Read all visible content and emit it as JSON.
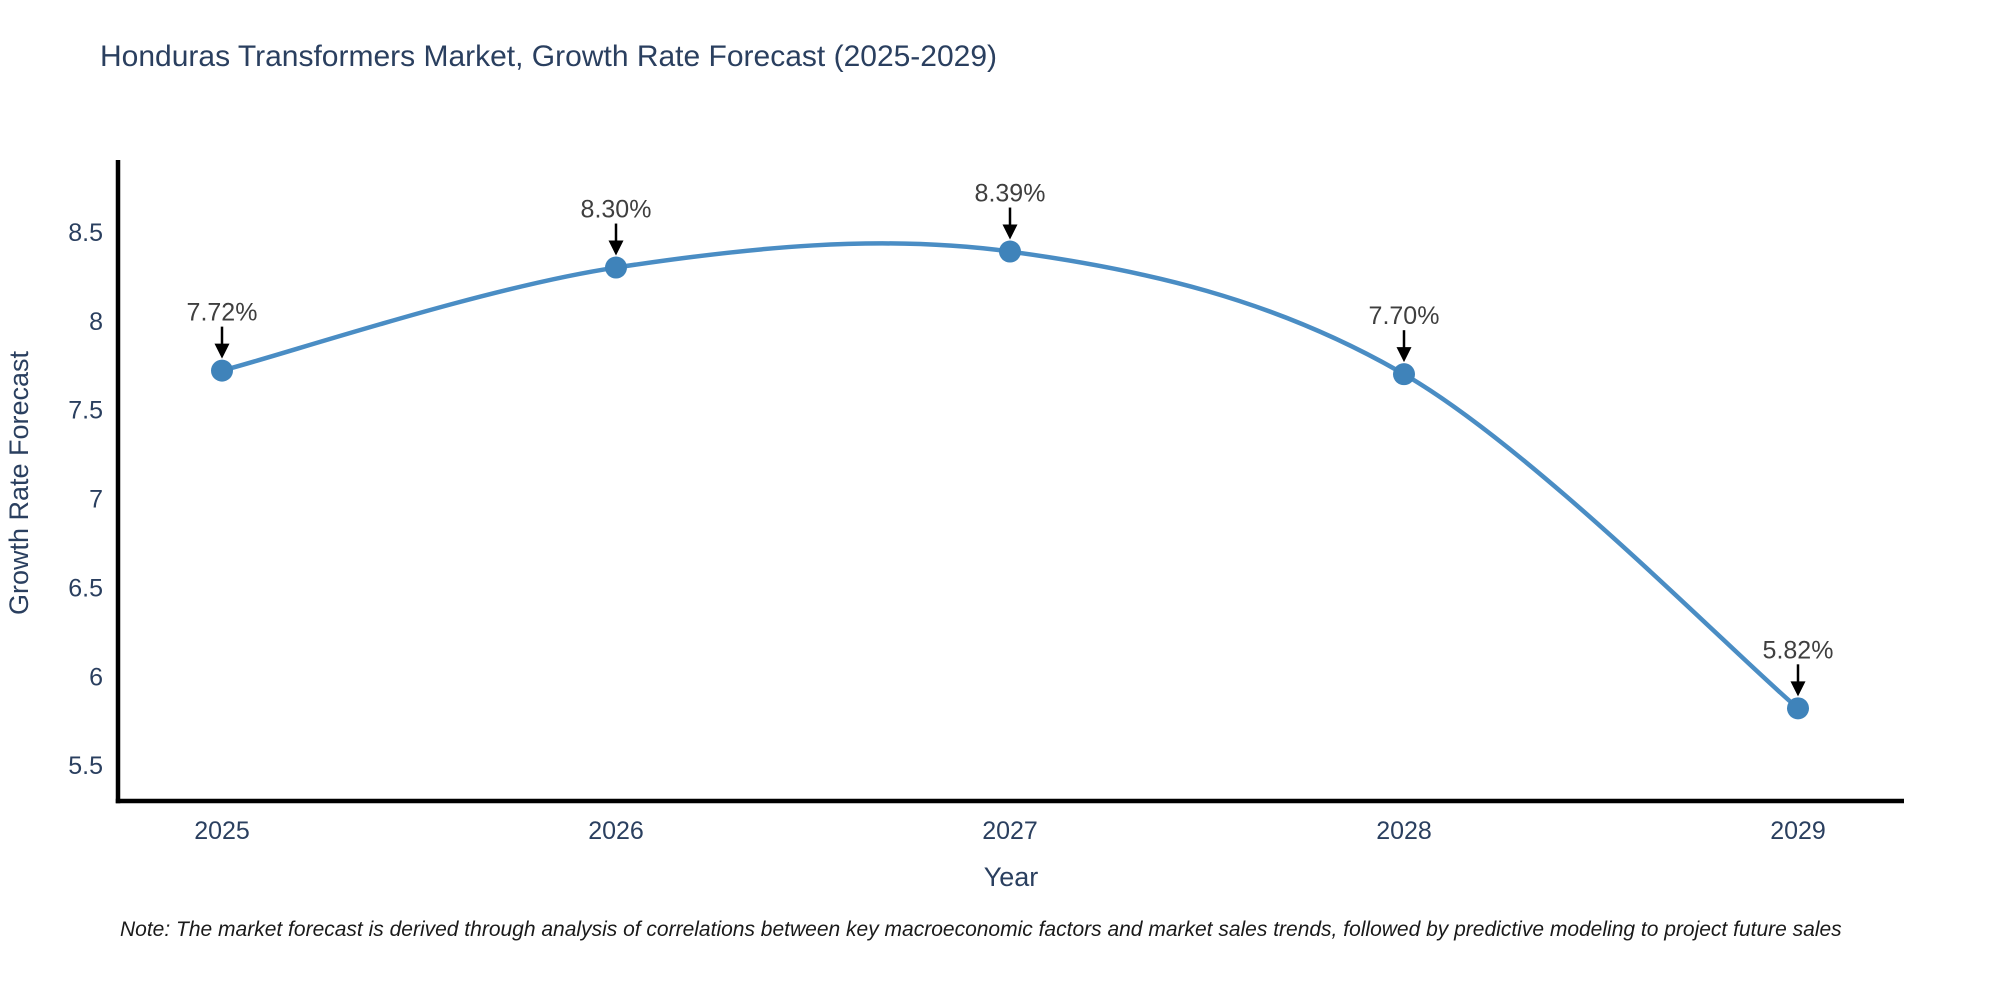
{
  "page": {
    "title": "Honduras Transformers Market, Growth Rate Forecast (2025-2029)",
    "note": "Note: The market forecast is derived through analysis of correlations between key macroeconomic factors and market sales trends, followed by predictive modeling to project future sales"
  },
  "chart_data": {
    "type": "line",
    "title": "Honduras Transformers Market, Growth Rate Forecast (2025-2029)",
    "x": [
      "2025",
      "2026",
      "2027",
      "2028",
      "2029"
    ],
    "series": [
      {
        "name": "Growth Rate Forecast",
        "values": [
          7.72,
          8.3,
          8.39,
          7.7,
          5.82
        ]
      }
    ],
    "point_labels": [
      "7.72%",
      "8.30%",
      "8.39%",
      "7.70%",
      "5.82%"
    ],
    "xlabel": "Year",
    "ylabel": "Growth Rate Forecast",
    "yticks": [
      "5.5",
      "6",
      "6.5",
      "7",
      "7.5",
      "8",
      "8.5"
    ],
    "ylim": [
      5.3,
      8.9
    ],
    "grid": false,
    "legend_position": "none",
    "line_style": "smooth",
    "marker": "circle",
    "annotation_arrows": true
  },
  "colors": {
    "background": "#ffffff",
    "line": "#4a8dc4",
    "marker": "#3f83ba",
    "axis": "#000000",
    "title_text": "#2a3f5f",
    "tick_text": "#2a3f5f",
    "axis_label_text": "#2a3f5f",
    "annotation_text": "#3f3f3f",
    "annotation_arrow": "#000000",
    "note_text": "#1a1a1a"
  }
}
